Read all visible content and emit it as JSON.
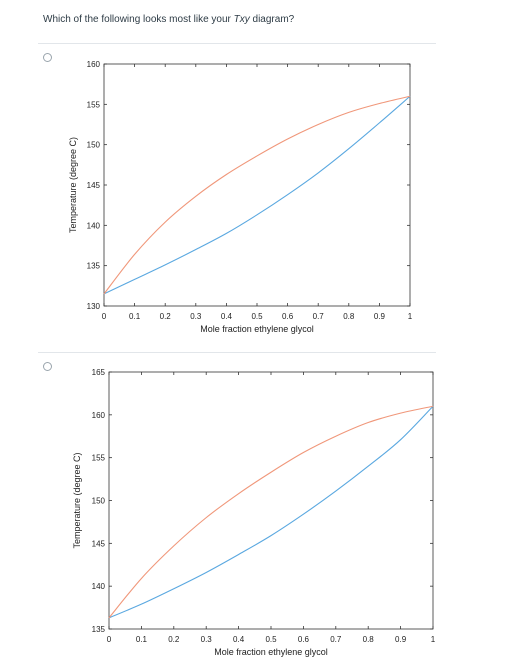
{
  "question": {
    "prefix": "Which of the following looks most like your ",
    "emphasis": "Txy",
    "suffix": " diagram?"
  },
  "colors": {
    "liquid_curve": "#5aa8e0",
    "vapor_curve": "#f0977a",
    "axis": "#333333",
    "divider": "#e2e6ea"
  },
  "chart_data": [
    {
      "type": "line",
      "title": "",
      "xlabel": "Mole fraction ethylene glycol",
      "ylabel": "Temperature (degree C)",
      "xlim": [
        0,
        1
      ],
      "ylim": [
        130,
        160
      ],
      "xticks": [
        0,
        0.1,
        0.2,
        0.3,
        0.4,
        0.5,
        0.6,
        0.7,
        0.8,
        0.9,
        1
      ],
      "yticks": [
        130,
        135,
        140,
        145,
        150,
        155,
        160
      ],
      "grid": false,
      "series": [
        {
          "x": [
            0,
            0.1,
            0.2,
            0.3,
            0.4,
            0.5,
            0.6,
            0.7,
            0.8,
            0.9,
            1
          ],
          "y": [
            131.5,
            133.3,
            135.1,
            137.0,
            139.0,
            141.3,
            143.8,
            146.5,
            149.5,
            152.7,
            156.0
          ],
          "color": "#5aa8e0"
        },
        {
          "x": [
            0,
            0.1,
            0.2,
            0.3,
            0.4,
            0.5,
            0.6,
            0.7,
            0.8,
            0.9,
            1
          ],
          "y": [
            131.5,
            136.4,
            140.4,
            143.6,
            146.3,
            148.6,
            150.7,
            152.5,
            154.0,
            155.1,
            156.0
          ],
          "color": "#f0977a"
        }
      ]
    },
    {
      "type": "line",
      "title": "",
      "xlabel": "Mole fraction ethylene glycol",
      "ylabel": "Temperature (degree C)",
      "xlim": [
        0,
        1
      ],
      "ylim": [
        135,
        165
      ],
      "xticks": [
        0,
        0.1,
        0.2,
        0.3,
        0.4,
        0.5,
        0.6,
        0.7,
        0.8,
        0.9,
        1
      ],
      "yticks": [
        135,
        140,
        145,
        150,
        155,
        160,
        165
      ],
      "grid": false,
      "series": [
        {
          "x": [
            0,
            0.1,
            0.2,
            0.3,
            0.4,
            0.5,
            0.6,
            0.7,
            0.8,
            0.9,
            1
          ],
          "y": [
            136.3,
            137.9,
            139.7,
            141.6,
            143.7,
            145.9,
            148.4,
            151.1,
            154.0,
            157.1,
            161.0
          ],
          "color": "#5aa8e0"
        },
        {
          "x": [
            0,
            0.1,
            0.2,
            0.3,
            0.4,
            0.5,
            0.6,
            0.7,
            0.8,
            0.9,
            1
          ],
          "y": [
            136.3,
            140.9,
            144.7,
            148.0,
            150.8,
            153.3,
            155.6,
            157.5,
            159.1,
            160.2,
            161.0
          ],
          "color": "#f0977a"
        }
      ]
    }
  ]
}
